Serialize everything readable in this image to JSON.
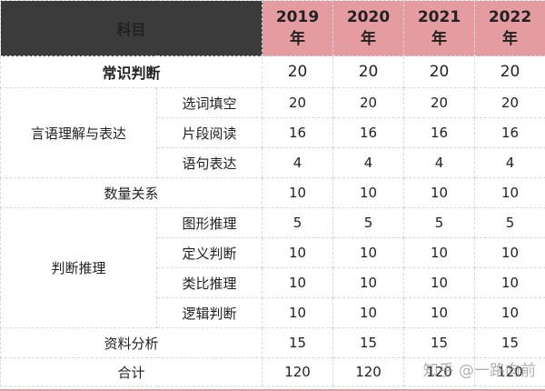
{
  "header": {
    "subject": "科目",
    "years": [
      {
        "year": "2019",
        "unit": "年"
      },
      {
        "year": "2020",
        "unit": "年"
      },
      {
        "year": "2021",
        "unit": "年"
      },
      {
        "year": "2022",
        "unit": "年"
      }
    ]
  },
  "rows": {
    "common_sense": {
      "label": "常识判断",
      "values": [
        "20",
        "20",
        "20",
        "20"
      ]
    },
    "verbal": {
      "label": "言语理解与表达",
      "items": [
        {
          "label": "选词填空",
          "values": [
            "20",
            "20",
            "20",
            "20"
          ]
        },
        {
          "label": "片段阅读",
          "values": [
            "16",
            "16",
            "16",
            "16"
          ]
        },
        {
          "label": "语句表达",
          "values": [
            "4",
            "4",
            "4",
            "4"
          ]
        }
      ]
    },
    "quantity": {
      "label": "数量关系",
      "values": [
        "10",
        "10",
        "10",
        "10"
      ]
    },
    "reasoning": {
      "label": "判断推理",
      "items": [
        {
          "label": "图形推理",
          "values": [
            "5",
            "5",
            "5",
            "5"
          ]
        },
        {
          "label": "定义判断",
          "values": [
            "10",
            "10",
            "10",
            "10"
          ]
        },
        {
          "label": "类比推理",
          "values": [
            "10",
            "10",
            "10",
            "10"
          ]
        },
        {
          "label": "逻辑判断",
          "values": [
            "10",
            "10",
            "10",
            "10"
          ]
        }
      ]
    },
    "data_analysis": {
      "label": "资料分析",
      "values": [
        "15",
        "15",
        "15",
        "15"
      ]
    },
    "total": {
      "label": "合计",
      "values": [
        "120",
        "120",
        "120",
        "120"
      ]
    }
  },
  "watermark": "知乎 @一路向前",
  "colors": {
    "header_dark": "#3b3b3b",
    "header_pink": "#e49ca0"
  }
}
